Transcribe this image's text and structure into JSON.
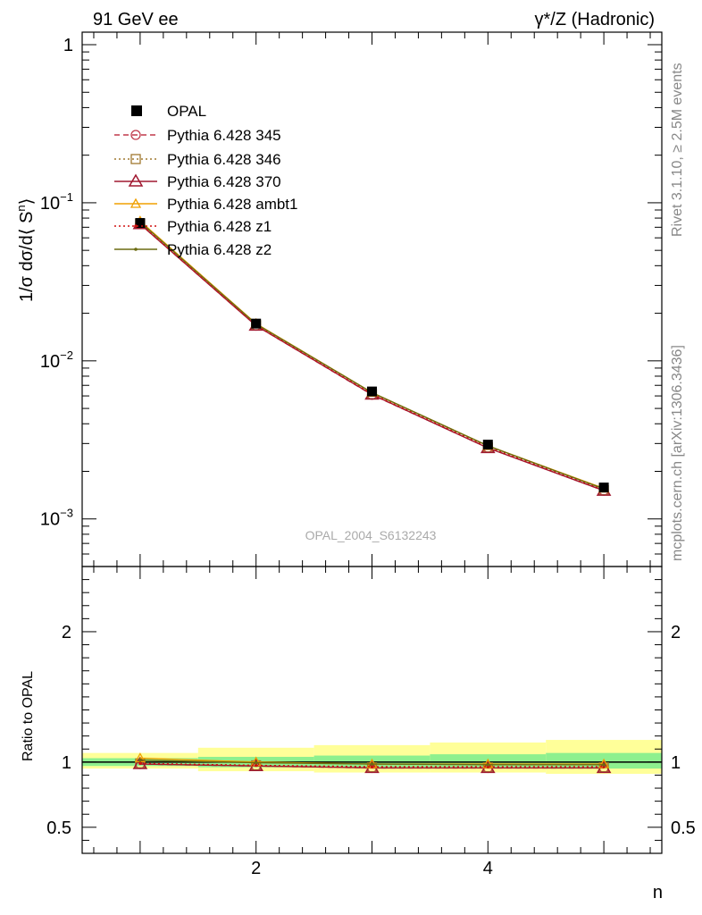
{
  "header": {
    "left_title": "91 GeV ee",
    "right_title": "γ*/Z (Hadronic)"
  },
  "side_labels": {
    "rivet": "Rivet 3.1.10, ≥ 2.5M events",
    "mcplots": "mcplots.cern.ch [arXiv:1306.3436]"
  },
  "watermark": "OPAL_2004_S6132243",
  "chart_data": [
    {
      "type": "line",
      "panel": "main",
      "ylabel": "1/σ dσ/d⟨ S^n⟩",
      "yscale": "log",
      "ylim": [
        0.0005,
        1.2
      ],
      "xlim": [
        0.5,
        5.5
      ],
      "yticks": [
        {
          "value": 1,
          "label": "1"
        },
        {
          "value": 0.1,
          "label": "10",
          "exp": "−1"
        },
        {
          "value": 0.01,
          "label": "10",
          "exp": "−2"
        },
        {
          "value": 0.001,
          "label": "10",
          "exp": "−3"
        }
      ],
      "x": [
        1,
        2,
        3,
        4,
        5
      ],
      "data": {
        "name": "OPAL",
        "values": [
          0.0745,
          0.0172,
          0.0064,
          0.00295,
          0.00158
        ]
      },
      "series": [
        {
          "name": "Pythia 6.428 345",
          "color": "#c0394a",
          "dash": "6,4",
          "marker": "circle",
          "values": [
            0.0733,
            0.0167,
            0.0061,
            0.00282,
            0.00151
          ]
        },
        {
          "name": "Pythia 6.428 346",
          "color": "#a07830",
          "dash": "2,3",
          "marker": "square",
          "values": [
            0.0735,
            0.0168,
            0.00615,
            0.00283,
            0.00152
          ]
        },
        {
          "name": "Pythia 6.428 370",
          "color": "#a01830",
          "dash": "",
          "marker": "triangle",
          "values": [
            0.0733,
            0.0167,
            0.00612,
            0.00281,
            0.00151
          ]
        },
        {
          "name": "Pythia 6.428 ambt1",
          "color": "#f0a000",
          "dash": "",
          "marker": "triangle-small",
          "values": [
            0.0765,
            0.0172,
            0.0063,
            0.0029,
            0.00156
          ]
        },
        {
          "name": "Pythia 6.428 z1",
          "color": "#d01010",
          "dash": "2,3",
          "marker": "dot",
          "values": [
            0.0738,
            0.0168,
            0.00617,
            0.00285,
            0.00153
          ]
        },
        {
          "name": "Pythia 6.428 z2",
          "color": "#6b6b10",
          "dash": "",
          "marker": "dot",
          "values": [
            0.0755,
            0.0171,
            0.0063,
            0.0029,
            0.00155
          ]
        }
      ],
      "legend": "top-left"
    },
    {
      "type": "line",
      "panel": "ratio",
      "ylabel": "Ratio to OPAL",
      "xlabel": "n",
      "ylim": [
        0.3,
        2.5
      ],
      "yticks": [
        {
          "value": 0.5,
          "label": "0.5"
        },
        {
          "value": 1,
          "label": "1"
        },
        {
          "value": 2,
          "label": "2"
        }
      ],
      "xticks": [
        {
          "value": 2,
          "label": "2"
        },
        {
          "value": 4,
          "label": "4"
        }
      ],
      "bands": [
        {
          "x0": 0.5,
          "x1": 1.5,
          "stat": [
            0.97,
            1.03
          ],
          "total": [
            0.95,
            1.07
          ]
        },
        {
          "x0": 1.5,
          "x1": 2.5,
          "stat": [
            0.96,
            1.04
          ],
          "total": [
            0.93,
            1.11
          ]
        },
        {
          "x0": 2.5,
          "x1": 3.5,
          "stat": [
            0.96,
            1.05
          ],
          "total": [
            0.92,
            1.13
          ]
        },
        {
          "x0": 3.5,
          "x1": 4.5,
          "stat": [
            0.96,
            1.06
          ],
          "total": [
            0.92,
            1.15
          ]
        },
        {
          "x0": 4.5,
          "x1": 5.5,
          "stat": [
            0.95,
            1.07
          ],
          "total": [
            0.91,
            1.17
          ]
        }
      ],
      "x": [
        1,
        2,
        3,
        4,
        5
      ],
      "series": [
        {
          "name": "Pythia 6.428 345",
          "color": "#c0394a",
          "dash": "6,4",
          "marker": "circle",
          "values": [
            0.985,
            0.97,
            0.955,
            0.955,
            0.955
          ]
        },
        {
          "name": "Pythia 6.428 346",
          "color": "#a07830",
          "dash": "2,3",
          "marker": "square",
          "values": [
            0.99,
            0.975,
            0.96,
            0.96,
            0.96
          ]
        },
        {
          "name": "Pythia 6.428 370",
          "color": "#a01830",
          "dash": "",
          "marker": "triangle",
          "values": [
            0.985,
            0.97,
            0.955,
            0.955,
            0.955
          ]
        },
        {
          "name": "Pythia 6.428 ambt1",
          "color": "#f0a000",
          "dash": "",
          "marker": "triangle-small",
          "values": [
            1.03,
            1.0,
            0.985,
            0.985,
            0.985
          ]
        },
        {
          "name": "Pythia 6.428 z1",
          "color": "#d01010",
          "dash": "2,3",
          "marker": "dot",
          "values": [
            0.99,
            0.975,
            0.965,
            0.965,
            0.965
          ]
        },
        {
          "name": "Pythia 6.428 z2",
          "color": "#6b6b10",
          "dash": "",
          "marker": "dot",
          "values": [
            1.015,
            0.995,
            0.985,
            0.98,
            0.98
          ]
        }
      ]
    }
  ],
  "colors": {
    "band_stat": "#8ef08e",
    "band_total": "#ffff99",
    "data_marker": "#000000"
  }
}
